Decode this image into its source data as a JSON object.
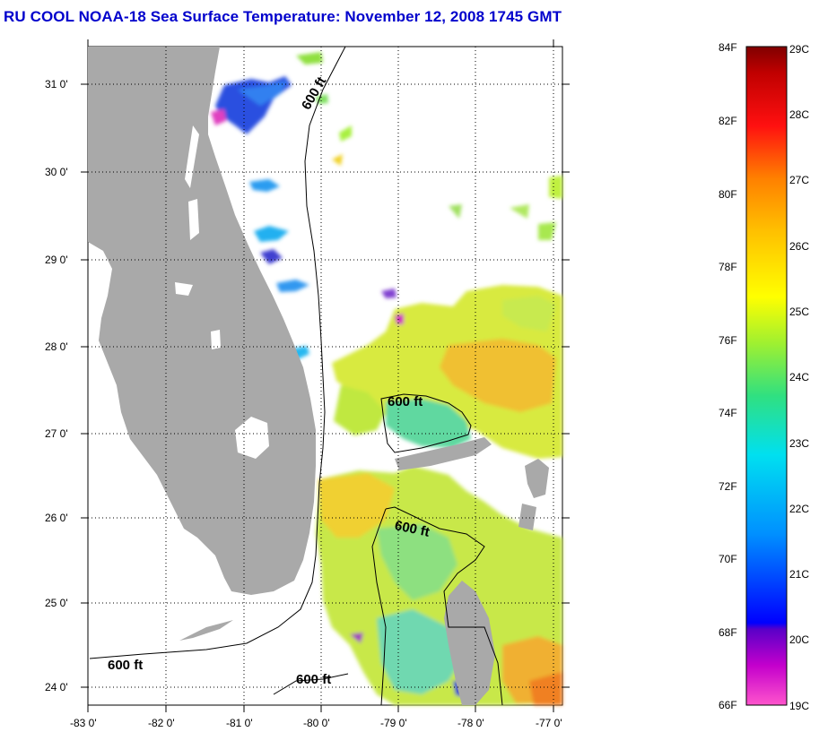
{
  "title": "RU COOL  NOAA-18  Sea Surface Temperature:  November 12, 2008 1745 GMT",
  "map": {
    "latitude_labels": [
      "31 0'",
      "30 0'",
      "29 0'",
      "28 0'",
      "27 0'",
      "26 0'",
      "25 0'",
      "24 0'"
    ],
    "longitude_labels": [
      "-83 0'",
      "-82 0'",
      "-81 0'",
      "-80 0'",
      "-79 0'",
      "-78 0'",
      "-77 0'"
    ],
    "isobath_labels": [
      "600 ft",
      "600 ft",
      "600 ft",
      "600 ft",
      "600 ft"
    ],
    "land_color": "#a9a9a9",
    "grid": "dotted"
  },
  "colorbar": {
    "fahrenheit_labels": [
      "84F",
      "82F",
      "80F",
      "78F",
      "76F",
      "74F",
      "72F",
      "70F",
      "68F",
      "66F"
    ],
    "celsius_labels": [
      "29C",
      "28C",
      "27C",
      "26C",
      "25C",
      "24C",
      "23C",
      "22C",
      "21C",
      "20C",
      "19C"
    ],
    "range_f": [
      66,
      84
    ],
    "range_c": [
      19,
      29
    ]
  }
}
